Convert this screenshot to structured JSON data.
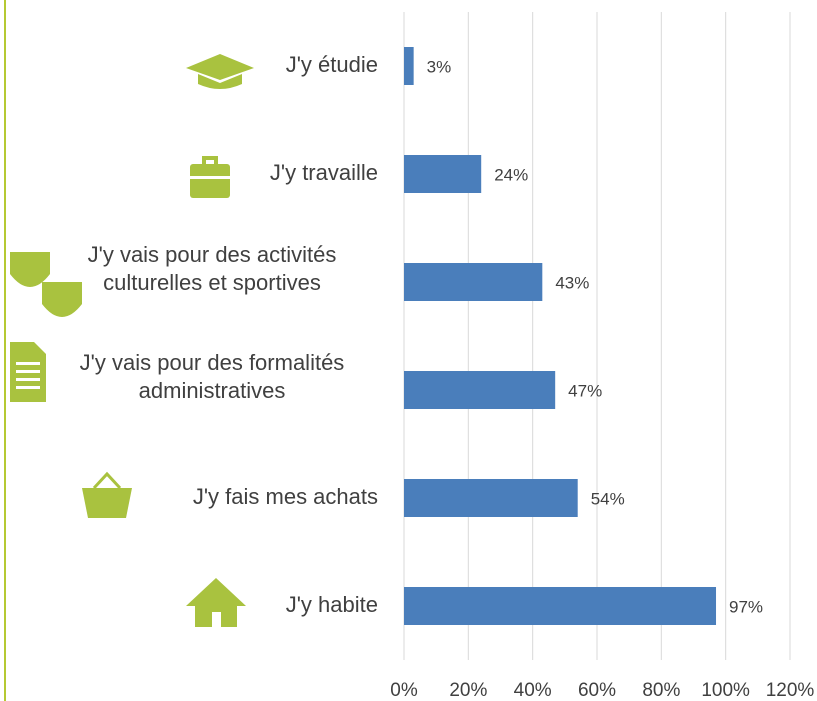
{
  "chart_data": {
    "type": "bar",
    "orientation": "horizontal",
    "categories": [
      "J'y étudie",
      "J'y travaille",
      "J'y vais pour des activités\nculturelles et sportives",
      "J'y vais pour des formalités\nadministratives",
      "J'y fais mes achats",
      "J'y habite"
    ],
    "values": [
      3,
      24,
      43,
      47,
      54,
      97
    ],
    "value_labels": [
      "3%",
      "24%",
      "43%",
      "47%",
      "54%",
      "97%"
    ],
    "color": "#4a7ebb",
    "xlim": [
      0,
      120
    ],
    "xticks": [
      {
        "value": 0,
        "label": "0%"
      },
      {
        "value": 20,
        "label": "20%"
      },
      {
        "value": 40,
        "label": "40%"
      },
      {
        "value": 60,
        "label": "60%"
      },
      {
        "value": 80,
        "label": "80%"
      },
      {
        "value": 100,
        "label": "100%"
      },
      {
        "value": 120,
        "label": "120%"
      }
    ],
    "grid": true
  }
}
